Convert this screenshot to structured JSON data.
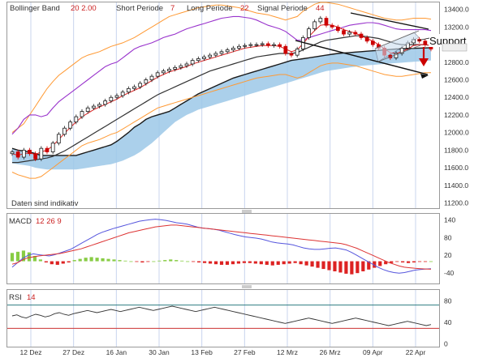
{
  "header": {
    "bollinger_label": "Bollinger Band",
    "bollinger_values": "20  2.00",
    "short_label": "Short Periode",
    "short_value": "7",
    "long_label": "Long Periode",
    "long_value": "22",
    "signal_label": "Signal Periode",
    "signal_value": "44"
  },
  "notice": "Daten sind indikativ",
  "annotation": {
    "support": "Support"
  },
  "macd_label": {
    "name": "MACD",
    "params": "12  26  9"
  },
  "rsi_label": {
    "name": "RSI",
    "params": "14"
  },
  "colors": {
    "candle_up": "#1a1a1a",
    "candle_down": "#cc0000",
    "bollinger": "#ff9933",
    "short": "#dd2222",
    "long": "#333333",
    "signal": "#9933cc",
    "cloud": "#9cc8e8",
    "cloud_edge": "#1a1a1a",
    "macd_line": "#5555dd",
    "signal_line": "#dd3333",
    "hist_pos": "#88cc44",
    "hist_neg": "#dd2222",
    "rsi": "#333333",
    "rsi_upper": "#2d7d80",
    "rsi_lower": "#cc3333",
    "arrow": "#cc0000",
    "grid_v": "#c8d4ee"
  },
  "chart_data": [
    {
      "type": "candlestick",
      "title": "",
      "x_ticks": [
        "12 Dez",
        "27 Dez",
        "16 Jan",
        "30 Jan",
        "13 Feb",
        "27 Feb",
        "12 Mrz",
        "26 Mrz",
        "09 Apr",
        "22 Apr"
      ],
      "y_ticks": [
        11200,
        11400,
        11600,
        11800,
        12000,
        12200,
        12400,
        12600,
        12800,
        13000,
        13200,
        13400
      ],
      "ylim": [
        11140,
        13480
      ],
      "closes": [
        11780,
        11720,
        11800,
        11760,
        11700,
        11820,
        11780,
        11880,
        11980,
        12050,
        12120,
        12180,
        12240,
        12280,
        12300,
        12320,
        12360,
        12400,
        12420,
        12460,
        12500,
        12520,
        12560,
        12600,
        12640,
        12680,
        12700,
        12720,
        12740,
        12760,
        12780,
        12820,
        12840,
        12860,
        12880,
        12900,
        12920,
        12940,
        12960,
        12980,
        12990,
        13000,
        13000,
        13010,
        12990,
        13000,
        12980,
        12900,
        12880,
        12950,
        13080,
        13180,
        13260,
        13300,
        13220,
        13200,
        13160,
        13120,
        13140,
        13120,
        13080,
        13040,
        13000,
        12960,
        12880,
        12850,
        12900,
        12960,
        13020,
        13060,
        13040,
        13000,
        12950
      ],
      "bollinger_upper": [
        12000,
        12050,
        12100,
        12200,
        12300,
        12400,
        12500,
        12580,
        12650,
        12700,
        12750,
        12800,
        12850,
        12880,
        12900,
        12920,
        12950,
        12980,
        13000,
        13020,
        13050,
        13080,
        13120,
        13160,
        13200,
        13240,
        13280,
        13320,
        13340,
        13360,
        13380,
        13400,
        13420,
        13430,
        13440,
        13450,
        13450,
        13440,
        13430,
        13420,
        13400,
        13380,
        13360,
        13350,
        13340,
        13320,
        13300,
        13280,
        13300,
        13320,
        13380,
        13420,
        13460,
        13480,
        13480,
        13470,
        13460,
        13440,
        13420,
        13400,
        13380,
        13360,
        13340,
        13320,
        13300,
        13290,
        13280,
        13280,
        13290,
        13300,
        13300,
        13300,
        13290
      ],
      "bollinger_lower": [
        11550,
        11520,
        11500,
        11480,
        11480,
        11500,
        11550,
        11600,
        11650,
        11700,
        11750,
        11800,
        11850,
        11880,
        11900,
        11920,
        11950,
        11980,
        12000,
        12040,
        12080,
        12120,
        12160,
        12200,
        12240,
        12280,
        12300,
        12320,
        12340,
        12360,
        12380,
        12400,
        12420,
        12440,
        12460,
        12480,
        12500,
        12520,
        12540,
        12560,
        12580,
        12600,
        12620,
        12630,
        12640,
        12650,
        12660,
        12660,
        12640,
        12620,
        12640,
        12680,
        12720,
        12760,
        12780,
        12790,
        12790,
        12780,
        12770,
        12760,
        12740,
        12720,
        12700,
        12680,
        12660,
        12650,
        12640,
        12640,
        12650,
        12660,
        12670,
        12680,
        12680
      ],
      "short_ma": [
        11760,
        11740,
        11760,
        11770,
        11750,
        11780,
        11800,
        11850,
        11920,
        11990,
        12060,
        12120,
        12180,
        12220,
        12260,
        12290,
        12320,
        12350,
        12380,
        12420,
        12450,
        12480,
        12510,
        12550,
        12590,
        12630,
        12660,
        12690,
        12710,
        12730,
        12750,
        12780,
        12800,
        12820,
        12840,
        12860,
        12880,
        12900,
        12920,
        12940,
        12960,
        12970,
        12980,
        12990,
        12990,
        12990,
        12980,
        12950,
        12920,
        12940,
        13010,
        13090,
        13160,
        13220,
        13230,
        13220,
        13200,
        13170,
        13150,
        13130,
        13100,
        13070,
        13040,
        13000,
        12950,
        12910,
        12900,
        12920,
        12950,
        12990,
        13000,
        13000,
        12990
      ],
      "long_ma": [
        11660,
        11660,
        11670,
        11680,
        11690,
        11700,
        11710,
        11730,
        11760,
        11790,
        11830,
        11870,
        11910,
        11950,
        11990,
        12030,
        12070,
        12110,
        12150,
        12190,
        12230,
        12270,
        12310,
        12350,
        12390,
        12430,
        12460,
        12490,
        12520,
        12550,
        12580,
        12610,
        12640,
        12670,
        12700,
        12720,
        12740,
        12760,
        12780,
        12800,
        12820,
        12840,
        12860,
        12870,
        12880,
        12890,
        12900,
        12900,
        12900,
        12910,
        12940,
        12970,
        13000,
        13030,
        13050,
        13060,
        13070,
        13080,
        13090,
        13100,
        13100,
        13090,
        13080,
        13070,
        13050,
        13030,
        13010,
        13000,
        13000,
        13000,
        13000,
        13000,
        12990
      ],
      "signal_ma": [
        11980,
        12050,
        12150,
        12200,
        12200,
        12180,
        12200,
        12280,
        12350,
        12400,
        12450,
        12500,
        12550,
        12600,
        12650,
        12700,
        12750,
        12780,
        12800,
        12850,
        12900,
        12950,
        12980,
        13000,
        13020,
        13050,
        13080,
        13100,
        13120,
        13150,
        13180,
        13200,
        13220,
        13240,
        13260,
        13280,
        13300,
        13310,
        13320,
        13320,
        13310,
        13300,
        13280,
        13250,
        13220,
        13200,
        13180,
        13150,
        13100,
        13050,
        13050,
        13080,
        13100,
        13120,
        13140,
        13160,
        13180,
        13200,
        13220,
        13230,
        13240,
        13250,
        13250,
        13240,
        13220,
        13200,
        13180,
        13170,
        13170,
        13170,
        13170,
        13170,
        13160
      ],
      "cloud_upper": [
        11820,
        11800,
        11790,
        11780,
        11760,
        11740,
        11740,
        11740,
        11740,
        11740,
        11740,
        11740,
        11760,
        11780,
        11800,
        11820,
        11840,
        11860,
        11900,
        11950,
        12000,
        12060,
        12100,
        12150,
        12180,
        12200,
        12220,
        12240,
        12280,
        12320,
        12360,
        12400,
        12440,
        12470,
        12500,
        12530,
        12560,
        12590,
        12620,
        12640,
        12660,
        12680,
        12700,
        12720,
        12740,
        12760,
        12780,
        12800,
        12820,
        12830,
        12840,
        12850,
        12860,
        12870,
        12880,
        12890,
        12900,
        12905,
        12910,
        12915,
        12920,
        12925,
        12930,
        12935,
        12940,
        12945,
        12950,
        12952,
        12955,
        12958,
        12960,
        12962,
        12965
      ],
      "cloud_lower": [
        11650,
        11640,
        11630,
        11620,
        11600,
        11590,
        11580,
        11580,
        11580,
        11580,
        11580,
        11580,
        11590,
        11600,
        11610,
        11620,
        11630,
        11640,
        11660,
        11680,
        11710,
        11740,
        11780,
        11830,
        11880,
        11940,
        12000,
        12060,
        12120,
        12160,
        12200,
        12230,
        12260,
        12280,
        12300,
        12320,
        12340,
        12360,
        12380,
        12400,
        12420,
        12440,
        12460,
        12480,
        12500,
        12520,
        12540,
        12560,
        12580,
        12600,
        12620,
        12640,
        12660,
        12680,
        12700,
        12710,
        12720,
        12730,
        12740,
        12750,
        12760,
        12765,
        12770,
        12775,
        12780,
        12785,
        12790,
        12795,
        12800,
        12805,
        12810,
        12815,
        12820
      ]
    },
    {
      "type": "line",
      "title": "MACD",
      "y_ticks": [
        -40,
        20,
        80,
        140
      ],
      "ylim": [
        -75,
        160
      ],
      "series": [
        {
          "name": "12",
          "values": [
            -20,
            -5,
            10,
            20,
            25,
            22,
            20,
            18,
            22,
            28,
            34,
            40,
            50,
            60,
            70,
            80,
            90,
            98,
            104,
            110,
            115,
            120,
            125,
            130,
            135,
            138,
            140,
            142,
            140,
            138,
            134,
            130,
            128,
            125,
            120,
            115,
            112,
            110,
            108,
            105,
            100,
            95,
            90,
            86,
            82,
            80,
            78,
            75,
            70,
            65,
            62,
            60,
            58,
            55,
            50,
            45,
            42,
            40,
            40,
            42,
            44,
            45,
            42,
            38,
            30,
            20,
            10,
            0,
            -10,
            -20,
            -28,
            -34,
            -38,
            -40,
            -38,
            -34,
            -30,
            -28,
            -26,
            -25
          ]
        },
        {
          "name": "26",
          "values": [
            -10,
            -5,
            5,
            12,
            15,
            18,
            20,
            22,
            24,
            26,
            30,
            34,
            38,
            42,
            48,
            54,
            60,
            66,
            72,
            78,
            84,
            90,
            96,
            100,
            104,
            108,
            112,
            116,
            118,
            120,
            122,
            122,
            120,
            118,
            116,
            114,
            112,
            110,
            108,
            106,
            104,
            102,
            100,
            98,
            96,
            94,
            92,
            90,
            88,
            86,
            84,
            82,
            80,
            78,
            76,
            74,
            72,
            70,
            68,
            66,
            64,
            62,
            60,
            56,
            50,
            44,
            36,
            28,
            20,
            12,
            4,
            -4,
            -10,
            -16,
            -20,
            -22,
            -24,
            -25,
            -26,
            -27
          ]
        }
      ],
      "histogram": [
        28,
        32,
        36,
        30,
        18,
        6,
        -4,
        -10,
        -12,
        -8,
        -4,
        4,
        8,
        12,
        14,
        12,
        10,
        8,
        6,
        4,
        2,
        0,
        -2,
        -4,
        -2,
        0,
        2,
        4,
        6,
        4,
        2,
        0,
        -2,
        -4,
        -6,
        -8,
        -10,
        -12,
        -12,
        -10,
        -8,
        -6,
        -6,
        -8,
        -10,
        -12,
        -14,
        -12,
        -10,
        -8,
        -6,
        -10,
        -14,
        -18,
        -22,
        -26,
        -30,
        -34,
        -38,
        -42,
        -44,
        -40,
        -34,
        -28,
        -22,
        -16,
        -10,
        -6,
        -2,
        -4,
        -6,
        -4,
        -2,
        -1,
        0
      ]
    },
    {
      "type": "line",
      "title": "RSI",
      "y_ticks": [
        0,
        40,
        80
      ],
      "ylim": [
        -5,
        100
      ],
      "reference_lines": [
        72,
        29
      ],
      "series": [
        {
          "name": "14",
          "values": [
            52,
            54,
            50,
            48,
            52,
            55,
            53,
            50,
            52,
            56,
            58,
            55,
            53,
            56,
            58,
            60,
            62,
            60,
            58,
            60,
            62,
            64,
            62,
            60,
            62,
            64,
            66,
            68,
            66,
            64,
            62,
            64,
            66,
            68,
            70,
            68,
            66,
            64,
            62,
            60,
            62,
            64,
            66,
            68,
            66,
            64,
            62,
            60,
            58,
            56,
            54,
            52,
            50,
            48,
            46,
            44,
            42,
            40,
            38,
            40,
            42,
            44,
            46,
            48,
            46,
            44,
            42,
            40,
            38,
            40,
            42,
            44,
            46,
            48,
            46,
            44,
            42,
            40,
            38,
            36,
            34,
            36,
            38,
            40,
            42,
            40,
            38,
            36,
            34,
            36
          ]
        }
      ]
    }
  ]
}
